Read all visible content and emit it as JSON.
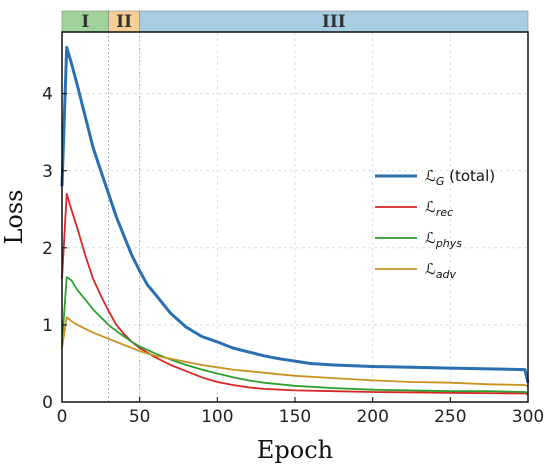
{
  "chart_data": {
    "type": "line",
    "xlabel": "Epoch",
    "ylabel": "Loss",
    "xlim": [
      0,
      300
    ],
    "ylim": [
      0,
      4.8
    ],
    "xticks": [
      0,
      50,
      100,
      150,
      200,
      250,
      300
    ],
    "yticks": [
      0,
      1,
      2,
      3,
      4
    ],
    "grid": true,
    "legend_position": "right",
    "phases": [
      {
        "label": "I",
        "start": 0,
        "end": 30,
        "color": "#9fd39a"
      },
      {
        "label": "II",
        "start": 30,
        "end": 50,
        "color": "#f7cf95"
      },
      {
        "label": "III",
        "start": 50,
        "end": 300,
        "color": "#a7cde3"
      }
    ],
    "series": [
      {
        "name": "ℒ_G (total)",
        "legend": {
          "main": "ℒ",
          "sub": "G",
          "suffix": " (total)"
        },
        "color": "#2a6fb0",
        "width": 3,
        "points": [
          [
            0,
            2.8
          ],
          [
            3,
            4.6
          ],
          [
            6,
            4.4
          ],
          [
            10,
            4.1
          ],
          [
            15,
            3.7
          ],
          [
            20,
            3.3
          ],
          [
            25,
            3.0
          ],
          [
            30,
            2.7
          ],
          [
            35,
            2.4
          ],
          [
            40,
            2.15
          ],
          [
            45,
            1.9
          ],
          [
            50,
            1.7
          ],
          [
            55,
            1.52
          ],
          [
            60,
            1.4
          ],
          [
            70,
            1.15
          ],
          [
            80,
            0.97
          ],
          [
            90,
            0.85
          ],
          [
            100,
            0.78
          ],
          [
            110,
            0.7
          ],
          [
            120,
            0.65
          ],
          [
            130,
            0.6
          ],
          [
            140,
            0.56
          ],
          [
            150,
            0.53
          ],
          [
            160,
            0.5
          ],
          [
            175,
            0.48
          ],
          [
            200,
            0.46
          ],
          [
            225,
            0.45
          ],
          [
            250,
            0.44
          ],
          [
            275,
            0.43
          ],
          [
            298,
            0.42
          ],
          [
            300,
            0.25
          ]
        ]
      },
      {
        "name": "ℒ_rec",
        "legend": {
          "main": "ℒ",
          "sub": "rec",
          "suffix": ""
        },
        "color": "#d62728",
        "width": 1.8,
        "points": [
          [
            0,
            1.6
          ],
          [
            3,
            2.7
          ],
          [
            6,
            2.5
          ],
          [
            10,
            2.25
          ],
          [
            15,
            1.9
          ],
          [
            20,
            1.6
          ],
          [
            25,
            1.38
          ],
          [
            30,
            1.18
          ],
          [
            35,
            1.0
          ],
          [
            40,
            0.88
          ],
          [
            45,
            0.78
          ],
          [
            50,
            0.7
          ],
          [
            60,
            0.58
          ],
          [
            70,
            0.48
          ],
          [
            80,
            0.4
          ],
          [
            90,
            0.32
          ],
          [
            100,
            0.26
          ],
          [
            110,
            0.22
          ],
          [
            120,
            0.19
          ],
          [
            130,
            0.17
          ],
          [
            150,
            0.15
          ],
          [
            175,
            0.14
          ],
          [
            200,
            0.13
          ],
          [
            250,
            0.12
          ],
          [
            298,
            0.11
          ],
          [
            300,
            0.1
          ]
        ]
      },
      {
        "name": "ℒ_phys",
        "legend": {
          "main": "ℒ",
          "sub": "phys",
          "suffix": ""
        },
        "color": "#2ca02c",
        "width": 1.8,
        "points": [
          [
            0,
            0.75
          ],
          [
            3,
            1.62
          ],
          [
            6,
            1.58
          ],
          [
            10,
            1.45
          ],
          [
            15,
            1.33
          ],
          [
            20,
            1.2
          ],
          [
            25,
            1.1
          ],
          [
            30,
            1.0
          ],
          [
            35,
            0.92
          ],
          [
            40,
            0.85
          ],
          [
            45,
            0.78
          ],
          [
            50,
            0.72
          ],
          [
            60,
            0.63
          ],
          [
            70,
            0.55
          ],
          [
            80,
            0.48
          ],
          [
            90,
            0.42
          ],
          [
            100,
            0.37
          ],
          [
            110,
            0.32
          ],
          [
            120,
            0.28
          ],
          [
            130,
            0.25
          ],
          [
            140,
            0.23
          ],
          [
            150,
            0.21
          ],
          [
            175,
            0.18
          ],
          [
            200,
            0.16
          ],
          [
            225,
            0.15
          ],
          [
            250,
            0.14
          ],
          [
            275,
            0.14
          ],
          [
            298,
            0.13
          ],
          [
            300,
            0.12
          ]
        ]
      },
      {
        "name": "ℒ_adv",
        "legend": {
          "main": "ℒ",
          "sub": "adv",
          "suffix": ""
        },
        "color": "#c9921e",
        "width": 1.8,
        "points": [
          [
            0,
            0.7
          ],
          [
            3,
            1.1
          ],
          [
            6,
            1.05
          ],
          [
            10,
            1.0
          ],
          [
            15,
            0.95
          ],
          [
            20,
            0.9
          ],
          [
            25,
            0.86
          ],
          [
            30,
            0.82
          ],
          [
            35,
            0.78
          ],
          [
            40,
            0.74
          ],
          [
            45,
            0.7
          ],
          [
            50,
            0.66
          ],
          [
            60,
            0.6
          ],
          [
            70,
            0.56
          ],
          [
            80,
            0.52
          ],
          [
            90,
            0.48
          ],
          [
            100,
            0.45
          ],
          [
            110,
            0.42
          ],
          [
            120,
            0.4
          ],
          [
            130,
            0.38
          ],
          [
            140,
            0.36
          ],
          [
            150,
            0.34
          ],
          [
            175,
            0.31
          ],
          [
            200,
            0.28
          ],
          [
            225,
            0.26
          ],
          [
            250,
            0.25
          ],
          [
            275,
            0.23
          ],
          [
            298,
            0.22
          ],
          [
            300,
            0.2
          ]
        ]
      }
    ]
  }
}
